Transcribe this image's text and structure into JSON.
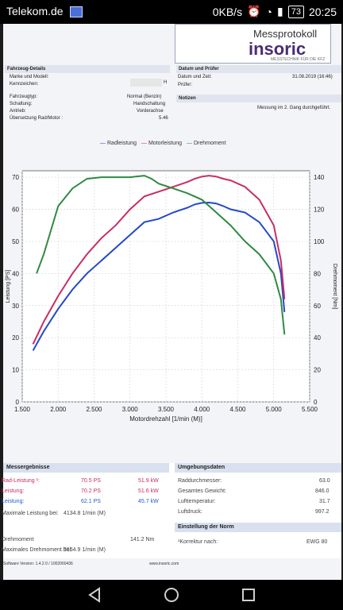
{
  "status_bar": {
    "carrier": "Telekom.de",
    "net_speed": "0KB/s",
    "battery": "73",
    "time": "20:25"
  },
  "header": {
    "title": "Messprotokoll",
    "logo": "insoric",
    "logo_sub": "MESSTECHNIK FÜR DIE KFZ"
  },
  "sections": {
    "vehicle_title": "Fahrzeug-Details",
    "date_title": "Datum und Prüfer",
    "notes_title": "Notizen",
    "vehicle_labels": [
      "Marke und Modell:",
      "Kennzeichen:",
      "Fahrzeugtyp:",
      "Schaltung:",
      "Antrieb:",
      "Übersetzung Rad/Motor :"
    ],
    "vehicle_values": [
      "",
      "",
      "Normal (Benzin)",
      "Handschaltung",
      "Vorderachse",
      "5.46"
    ],
    "vehicle_id_suffix": "H",
    "date_label": "Datum und Zeit:",
    "date_value": "31.08.2019 (16:46)",
    "inspector_label": "Prüfer:",
    "notes_text": "Messung im 2. Gang durchgeführt."
  },
  "chart_data": {
    "type": "line",
    "xlabel": "Motordrehzahl [1/min (M)]",
    "ylabel_left": "Leistung [PS]",
    "ylabel_right": "Drehmoment [Nm]",
    "legend": [
      "Radleistung",
      "Motorleistung",
      "Drehmoment"
    ],
    "x_ticks": [
      "1.500",
      "2.000",
      "2.500",
      "3.000",
      "3.500",
      "4.000",
      "4.500",
      "5.000",
      "5.500"
    ],
    "x_min": 1500,
    "x_max": 5500,
    "y_left_ticks": [
      "0",
      "10",
      "20",
      "30",
      "40",
      "50",
      "60",
      "70"
    ],
    "y_left_min": 0,
    "y_left_max": 72,
    "y_right_ticks": [
      "0",
      "20",
      "40",
      "60",
      "80",
      "100",
      "120",
      "140"
    ],
    "y_right_min": 0,
    "y_right_max": 144,
    "series": [
      {
        "name": "Radleistung",
        "color": "#2448c8",
        "axis": "left",
        "x": [
          1650,
          1800,
          2000,
          2200,
          2400,
          2600,
          2800,
          3000,
          3200,
          3400,
          3600,
          3800,
          3900,
          4000,
          4100,
          4200,
          4300,
          4400,
          4600,
          4800,
          5000,
          5100,
          5150
        ],
        "y": [
          16,
          22,
          29,
          35,
          40,
          44,
          48,
          52,
          56,
          57,
          59,
          60.5,
          61.5,
          62,
          62.1,
          61.8,
          61,
          60,
          59,
          56,
          50,
          40,
          28
        ]
      },
      {
        "name": "Motorleistung",
        "color": "#c82d64",
        "axis": "left",
        "x": [
          1650,
          1800,
          2000,
          2200,
          2400,
          2600,
          2800,
          3000,
          3200,
          3400,
          3600,
          3800,
          3900,
          4000,
          4100,
          4200,
          4300,
          4400,
          4600,
          4800,
          5000,
          5100,
          5150
        ],
        "y": [
          18,
          25,
          33,
          40,
          46,
          51,
          55,
          60,
          64,
          65.5,
          67,
          68.5,
          69.5,
          70.2,
          70.5,
          70.2,
          69.5,
          69,
          67,
          63,
          55,
          44,
          32
        ]
      },
      {
        "name": "Drehmoment",
        "color": "#2f8a43",
        "axis": "right",
        "x": [
          1700,
          1800,
          2000,
          2200,
          2400,
          2600,
          2800,
          3000,
          3100,
          3200,
          3300,
          3400,
          3600,
          3800,
          4000,
          4200,
          4400,
          4600,
          4800,
          5000,
          5100,
          5150
        ],
        "y": [
          80,
          92,
          122,
          133,
          139,
          140,
          140,
          140,
          140.5,
          141,
          139,
          136,
          133,
          130,
          126,
          118,
          110,
          100,
          92,
          80,
          64,
          42
        ]
      }
    ]
  },
  "results": {
    "title": "Messergebnisse",
    "rows": [
      {
        "label": "Rad-Leistung ¹:",
        "ps": "70.5 PS",
        "kw": "51.9 kW",
        "style": "pink"
      },
      {
        "label": "Leistung:",
        "ps": "70.2 PS",
        "kw": "51.6 kW",
        "style": "pink"
      },
      {
        "label": "Leistung:",
        "ps": "62.1 PS",
        "kw": "45.7 kW",
        "style": "blue"
      }
    ],
    "max_power_rpm_label": "Maximale Leistung bei:",
    "max_power_rpm": "4134.8 1/min (M)",
    "torque_label": "Drehmoment",
    "torque_value": "141.2 Nm",
    "max_torque_rpm_label": "Maximales Drehmoment bei:",
    "max_torque_rpm": "3154.9 1/min (M)"
  },
  "environment": {
    "title": "Umgebungsdaten",
    "rows": [
      {
        "label": "Raddurchmesser:",
        "value": "63.0"
      },
      {
        "label": "Gesamtes Gewicht:",
        "value": "846.0"
      },
      {
        "label": "Lufttemperatur:",
        "value": "31.7"
      },
      {
        "label": "Luftdruck:",
        "value": "997.2"
      }
    ],
    "norm_title": "Einstellung der Norm",
    "norm_label": "¹Korrektur nach:",
    "norm_value": "EWG 80"
  },
  "footer": {
    "version": "Software Version: 1.4.2.0 / 1002060436",
    "url": "www.insoric.com"
  }
}
